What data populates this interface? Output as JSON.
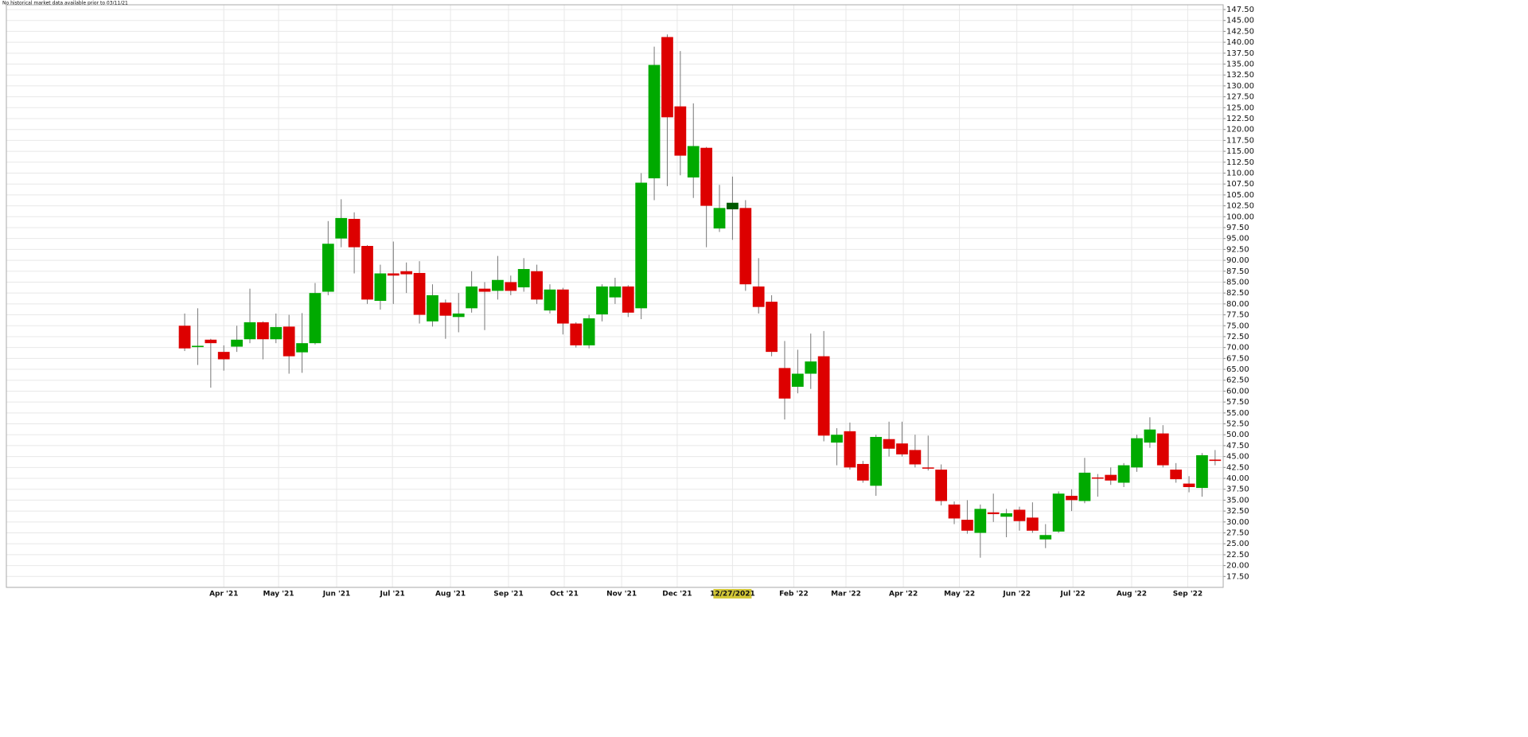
{
  "chart_data": {
    "type": "candlestick",
    "note_text": "No historical market data available prior to 03/11/21",
    "open": [
      75,
      70.1,
      71.8,
      69,
      70.2,
      71.9,
      75.8,
      71.9,
      74.8,
      68.9,
      71,
      82.8,
      95,
      99.5,
      93.3,
      80.7,
      87,
      87.5,
      87.1,
      76,
      80.3,
      77,
      79,
      83.5,
      83,
      85,
      83.8,
      87.5,
      78.5,
      83.3,
      75.5,
      70.5,
      77.6,
      81.5,
      84,
      79,
      108.8,
      141.2,
      125.3,
      109,
      115.8,
      97.3,
      101.7,
      102,
      84,
      80.5,
      65.3,
      61,
      64,
      68,
      48.2,
      50.8,
      43.3,
      38.3,
      49,
      48,
      46.5,
      42.5,
      42,
      34,
      30.5,
      27.5,
      32.2,
      31.2,
      32.8,
      31,
      26,
      27.8,
      36,
      34.8,
      40.2,
      40.8,
      39,
      42.5,
      48.2,
      50.3,
      42,
      38.8,
      37.8,
      44.3
    ],
    "high": [
      77.8,
      79,
      72,
      70.5,
      75,
      83.5,
      76,
      77.8,
      77.5,
      77.9,
      84.8,
      99,
      104,
      101,
      93.5,
      89,
      94.3,
      89.5,
      89.8,
      84.5,
      81,
      82.5,
      87.5,
      85,
      91,
      86.5,
      90.5,
      89,
      84.5,
      83.7,
      75.8,
      77.5,
      84.5,
      86,
      84.3,
      110,
      139,
      141.8,
      138,
      126,
      116,
      107.3,
      109.2,
      103.8,
      90.5,
      82,
      71.5,
      69.5,
      73.2,
      73.8,
      51.5,
      52.8,
      44,
      50,
      53,
      53,
      50,
      49.8,
      43.2,
      34.7,
      35,
      34,
      36.5,
      33,
      33.5,
      34.5,
      29.5,
      37,
      37.5,
      44.7,
      41,
      42.5,
      43.5,
      50,
      54,
      52.2,
      43.5,
      40.5,
      45.8,
      46.5
    ],
    "low": [
      69.2,
      66,
      60.8,
      64.7,
      69,
      71,
      67.3,
      71,
      64,
      64.2,
      70.7,
      82,
      93,
      87,
      80,
      78.7,
      80,
      82.5,
      75.5,
      74.8,
      72,
      73.5,
      78,
      74,
      81,
      82,
      82.8,
      80,
      77.8,
      73,
      70,
      69.8,
      76,
      80,
      77,
      76.5,
      103.8,
      107,
      109.5,
      104.3,
      93,
      96.5,
      94.7,
      83,
      77.8,
      68,
      53.5,
      59.5,
      60.5,
      48.5,
      43,
      42,
      39,
      36,
      45,
      45,
      42.5,
      41.8,
      33.8,
      29.5,
      27.3,
      21.8,
      30,
      26.5,
      28,
      27.5,
      24,
      27.5,
      32.5,
      34.3,
      35.8,
      38.5,
      38,
      41.5,
      47,
      42.5,
      39,
      36.8,
      35.8,
      43
    ],
    "close": [
      69.8,
      70.4,
      71,
      67.3,
      71.8,
      75.8,
      71.9,
      74.7,
      68,
      71,
      82.5,
      93.8,
      99.7,
      93,
      81,
      87,
      86.5,
      86.8,
      77.5,
      82,
      77.3,
      77.8,
      84,
      82.8,
      85.5,
      83,
      88,
      81,
      83.3,
      75.5,
      70.5,
      76.7,
      84,
      84,
      78,
      107.8,
      134.8,
      122.8,
      114,
      116.2,
      102.5,
      102,
      103.2,
      84.5,
      79.3,
      69,
      58.3,
      64,
      66.8,
      49.8,
      50,
      42.5,
      39.5,
      49.5,
      46.8,
      45.5,
      43.2,
      42.3,
      34.8,
      30.8,
      28,
      33,
      31.8,
      32,
      30.2,
      28,
      27,
      36.5,
      35,
      41.3,
      40,
      39.5,
      43,
      49.2,
      51.2,
      43,
      39.8,
      38,
      45.3,
      44
    ],
    "up_color": "#00aa00",
    "down_color": "#dd0000",
    "crosshair_color": "#005a00",
    "crosshair_label_color": "#d4c837",
    "crosshair_index": 42,
    "xlim": [
      -13.67,
      79.62
    ],
    "xticks": [
      {
        "value": 3,
        "label": "Apr '21"
      },
      {
        "value": 7.2,
        "label": "May '21"
      },
      {
        "value": 11.65,
        "label": "Jun '21"
      },
      {
        "value": 15.93,
        "label": "Jul '21"
      },
      {
        "value": 20.38,
        "label": "Aug '21"
      },
      {
        "value": 24.83,
        "label": "Sep '21"
      },
      {
        "value": 29.1,
        "label": "Oct '21"
      },
      {
        "value": 33.5,
        "label": "Nov '21"
      },
      {
        "value": 37.76,
        "label": "Dec '21"
      },
      {
        "value": 42,
        "label": "12/27/2021"
      },
      {
        "value": 46.7,
        "label": "Feb '22"
      },
      {
        "value": 50.7,
        "label": "Mar '22"
      },
      {
        "value": 55.1,
        "label": "Apr '22"
      },
      {
        "value": 59.4,
        "label": "May '22"
      },
      {
        "value": 63.8,
        "label": "Jun '22"
      },
      {
        "value": 68.1,
        "label": "Jul '22"
      },
      {
        "value": 72.6,
        "label": "Aug '22"
      },
      {
        "value": 76.9,
        "label": "Sep '22"
      }
    ],
    "ylim": [
      15,
      148.6
    ],
    "yticks": [
      {
        "value": 17.5,
        "label": "17.50"
      },
      {
        "value": 20,
        "label": "20.00"
      },
      {
        "value": 22.5,
        "label": "22.50"
      },
      {
        "value": 25,
        "label": "25.00"
      },
      {
        "value": 27.5,
        "label": "27.50"
      },
      {
        "value": 30,
        "label": "30.00"
      },
      {
        "value": 32.5,
        "label": "32.50"
      },
      {
        "value": 35,
        "label": "35.00"
      },
      {
        "value": 37.5,
        "label": "37.50"
      },
      {
        "value": 40,
        "label": "40.00"
      },
      {
        "value": 42.5,
        "label": "42.50"
      },
      {
        "value": 45,
        "label": "45.00"
      },
      {
        "value": 47.5,
        "label": "47.50"
      },
      {
        "value": 50,
        "label": "50.00"
      },
      {
        "value": 52.5,
        "label": "52.50"
      },
      {
        "value": 55,
        "label": "55.00"
      },
      {
        "value": 57.5,
        "label": "57.50"
      },
      {
        "value": 60,
        "label": "60.00"
      },
      {
        "value": 62.5,
        "label": "62.50"
      },
      {
        "value": 65,
        "label": "65.00"
      },
      {
        "value": 67.5,
        "label": "67.50"
      },
      {
        "value": 70,
        "label": "70.00"
      },
      {
        "value": 72.5,
        "label": "72.50"
      },
      {
        "value": 75,
        "label": "75.00"
      },
      {
        "value": 77.5,
        "label": "77.50"
      },
      {
        "value": 80,
        "label": "80.00"
      },
      {
        "value": 82.5,
        "label": "82.50"
      },
      {
        "value": 85,
        "label": "85.00"
      },
      {
        "value": 87.5,
        "label": "87.50"
      },
      {
        "value": 90,
        "label": "90.00"
      },
      {
        "value": 92.5,
        "label": "92.50"
      },
      {
        "value": 95,
        "label": "95.00"
      },
      {
        "value": 97.5,
        "label": "97.50"
      },
      {
        "value": 100,
        "label": "100.00"
      },
      {
        "value": 102.5,
        "label": "102.50"
      },
      {
        "value": 105,
        "label": "105.00"
      },
      {
        "value": 107.5,
        "label": "107.50"
      },
      {
        "value": 110,
        "label": "110.00"
      },
      {
        "value": 112.5,
        "label": "112.50"
      },
      {
        "value": 115,
        "label": "115.00"
      },
      {
        "value": 117.5,
        "label": "117.50"
      },
      {
        "value": 120,
        "label": "120.00"
      },
      {
        "value": 122.5,
        "label": "122.50"
      },
      {
        "value": 125,
        "label": "125.00"
      },
      {
        "value": 127.5,
        "label": "127.50"
      },
      {
        "value": 130,
        "label": "130.00"
      },
      {
        "value": 132.5,
        "label": "132.50"
      },
      {
        "value": 135,
        "label": "135.00"
      },
      {
        "value": 137.5,
        "label": "137.50"
      },
      {
        "value": 140,
        "label": "140.00"
      },
      {
        "value": 142.5,
        "label": "142.50"
      },
      {
        "value": 145,
        "label": "145.00"
      },
      {
        "value": 147.5,
        "label": "147.50"
      }
    ],
    "grid": true
  }
}
